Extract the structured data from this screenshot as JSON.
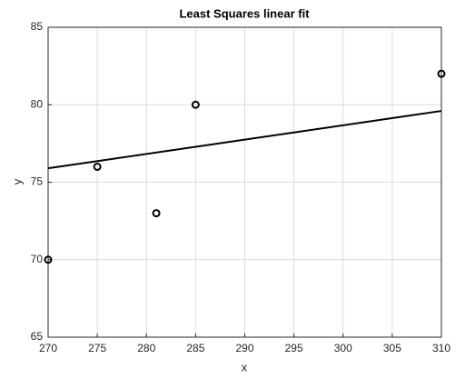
{
  "chart_data": {
    "type": "scatter",
    "title": "Least Squares linear fit",
    "xlabel": "x",
    "ylabel": "y",
    "series": [
      {
        "type": "scatter",
        "x": [
          270,
          275,
          281,
          285,
          310
        ],
        "values": [
          70,
          76,
          73,
          80,
          82
        ],
        "color": "#000000"
      },
      {
        "type": "line",
        "x": [
          270,
          310
        ],
        "values": [
          75.9,
          79.6
        ],
        "color": "#000000"
      }
    ],
    "xlim": [
      270,
      310
    ],
    "xticks": [
      270,
      275,
      280,
      285,
      290,
      295,
      300,
      305,
      310
    ],
    "ylim": [
      65,
      85
    ],
    "yticks": [
      65,
      70,
      75,
      80,
      85
    ],
    "grid": true
  }
}
